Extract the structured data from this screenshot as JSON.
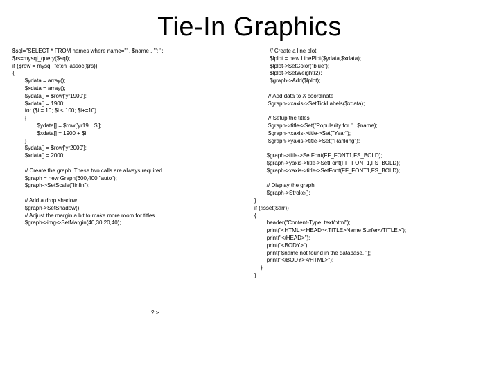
{
  "title": "Tie-In Graphics",
  "leftCode": "$sql=\"SELECT * FROM names where name='\" . $name . \"'; \";\n$rs=mysql_query($sql);\nif ($row = mysql_fetch_assoc($rs))\n{\n        $ydata = array();\n        $xdata = array();\n        $ydata[] = $row['yr1900'];\n        $xdata[] = 1900;\n        for ($i = 10; $i < 100; $i+=10)\n        {\n                $ydata[] = $row['yr19' . $i];\n                $xdata[] = 1900 + $i;\n        }\n        $ydata[] = $row['yr2000'];\n        $xdata[] = 2000;\n\n        // Create the graph. These two calls are always required\n        $graph = new Graph(600,400,\"auto\");\n        $graph->SetScale(\"linlin\");\n\n        // Add a drop shadow\n        $graph->SetShadow();\n        // Adjust the margin a bit to make more room for titles\n        $graph->img->SetMargin(40,30,20,40);\n\n\n\n\n\n\n\n\n\n\n\n                                                                                          ? >",
  "rightCode": "          // Create a line plot\n          $lplot = new LinePlot($ydata,$xdata);\n          $lplot->SetColor(\"blue\");\n          $lplot->SetWeight(2);\n          $graph->Add($lplot);\n\n         // Add data to X coordinate\n         $graph->xaxis->SetTickLabels($xdata);\n\n         // Setup the titles\n         $graph->title->Set(\"Popularity for \" . $name);\n         $graph->xaxis->title->Set(\"Year\");\n         $graph->yaxis->title->Set(\"Ranking\");\n\n        $graph->title->SetFont(FF_FONT1,FS_BOLD);\n        $graph->yaxis->title->SetFont(FF_FONT1,FS_BOLD);\n        $graph->xaxis->title->SetFont(FF_FONT1,FS_BOLD);\n\n        // Display the graph\n        $graph->Stroke();\n}\nif (!isset($arr))\n{\n        header(\"Content-Type: text/html\");\n        print(\"<HTML><HEAD><TITLE>Name Surfer</TITLE>\");\n        print(\"</HEAD>\");\n        print(\"<BODY>\");\n        print(\"$name not found in the database. \");\n        print(\"</BODY></HTML>\");\n    }\n}"
}
